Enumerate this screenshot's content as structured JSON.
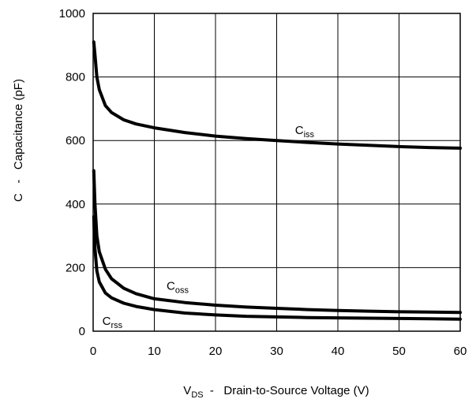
{
  "chart_data": {
    "type": "line",
    "xlabel": {
      "main": "V",
      "sub": "DS",
      "rest": "  -   Drain-to-Source Voltage (V)"
    },
    "ylabel": "C   -   Capacitance (pF)",
    "xlim": [
      0,
      60
    ],
    "ylim": [
      0,
      1000
    ],
    "x_ticks": [
      "0",
      "10",
      "20",
      "30",
      "40",
      "50",
      "60"
    ],
    "y_ticks": [
      "0",
      "200",
      "400",
      "600",
      "800",
      "1000"
    ],
    "grid": true,
    "series": [
      {
        "name": "Ciss",
        "label_main": "C",
        "label_sub": "iss",
        "x": [
          0.1,
          0.3,
          0.6,
          1,
          2,
          3,
          5,
          7,
          10,
          15,
          20,
          25,
          30,
          35,
          40,
          45,
          50,
          55,
          60
        ],
        "y": [
          910,
          870,
          800,
          760,
          710,
          688,
          665,
          652,
          640,
          625,
          614,
          606,
          600,
          594,
          589,
          585,
          581,
          578,
          576
        ]
      },
      {
        "name": "Coss",
        "label_main": "C",
        "label_sub": "oss",
        "x": [
          0.1,
          0.3,
          0.6,
          1,
          2,
          3,
          5,
          7,
          10,
          15,
          20,
          25,
          30,
          35,
          40,
          45,
          50,
          55,
          60
        ],
        "y": [
          505,
          400,
          300,
          250,
          195,
          165,
          135,
          118,
          102,
          90,
          82,
          76,
          72,
          68,
          65,
          63,
          61,
          60,
          59
        ]
      },
      {
        "name": "Crss",
        "label_main": "C",
        "label_sub": "rss",
        "x": [
          0.1,
          0.3,
          0.6,
          1,
          2,
          3,
          5,
          7,
          10,
          15,
          20,
          25,
          30,
          35,
          40,
          45,
          50,
          55,
          60
        ],
        "y": [
          360,
          260,
          190,
          155,
          120,
          105,
          88,
          78,
          68,
          57,
          51,
          47,
          45,
          43,
          42,
          41,
          40,
          39,
          38
        ]
      }
    ],
    "label_positions": {
      "Ciss": [
        33,
        620
      ],
      "Coss": [
        12,
        130
      ],
      "Crss": [
        1.5,
        20
      ]
    }
  }
}
